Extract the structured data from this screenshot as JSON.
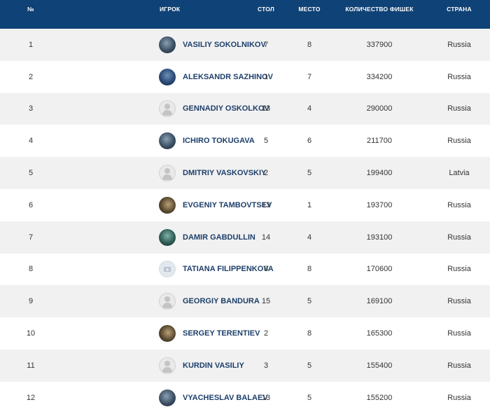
{
  "columns": {
    "num": "№",
    "player": "ИГРОК",
    "table": "СТОЛ",
    "seat": "МЕСТО",
    "chips": "КОЛИЧЕСТВО ФИШЕК",
    "country": "СТРАНА"
  },
  "colors": {
    "header_bg": "#0f4276",
    "name_text": "#1d3f6b",
    "row_alt": "#f1f1f1"
  },
  "rows": [
    {
      "num": "1",
      "name": "VASILIY SOKOLNIKOV",
      "avatar": "photo-avatar-icon",
      "table": "7",
      "seat": "8",
      "chips": "337900",
      "country": "Russia"
    },
    {
      "num": "2",
      "name": "ALEKSANDR SAZHINOV",
      "avatar": "photo-avatar-icon",
      "table": "1",
      "seat": "7",
      "chips": "334200",
      "country": "Russia"
    },
    {
      "num": "3",
      "name": "GENNADIY OSKOLKOV",
      "avatar": "default-avatar-icon",
      "table": "13",
      "seat": "4",
      "chips": "290000",
      "country": "Russia"
    },
    {
      "num": "4",
      "name": "ICHIRO TOKUGAVA",
      "avatar": "photo-avatar-icon",
      "table": "5",
      "seat": "6",
      "chips": "211700",
      "country": "Russia"
    },
    {
      "num": "5",
      "name": "DMITRIY VASKOVSKIY",
      "avatar": "default-avatar-icon",
      "table": "2",
      "seat": "5",
      "chips": "199400",
      "country": "Latvia"
    },
    {
      "num": "6",
      "name": "EVGENIY TAMBOVTSEV",
      "avatar": "photo-avatar-icon",
      "table": "13",
      "seat": "1",
      "chips": "193700",
      "country": "Russia"
    },
    {
      "num": "7",
      "name": "DAMIR GABDULLIN",
      "avatar": "photo-avatar-icon",
      "table": "14",
      "seat": "4",
      "chips": "193100",
      "country": "Russia"
    },
    {
      "num": "8",
      "name": "TATIANA FILIPPENKOVA",
      "avatar": "camera-avatar-icon",
      "table": "8",
      "seat": "8",
      "chips": "170600",
      "country": "Russia"
    },
    {
      "num": "9",
      "name": "GEORGIY BANDURA",
      "avatar": "default-avatar-icon",
      "table": "15",
      "seat": "5",
      "chips": "169100",
      "country": "Russia"
    },
    {
      "num": "10",
      "name": "SERGEY TERENTIEV",
      "avatar": "photo-avatar-icon",
      "table": "2",
      "seat": "8",
      "chips": "165300",
      "country": "Russia"
    },
    {
      "num": "11",
      "name": "KURDIN VASILIY",
      "avatar": "default-avatar-icon",
      "table": "3",
      "seat": "5",
      "chips": "155400",
      "country": "Russia"
    },
    {
      "num": "12",
      "name": "VYACHESLAV BALAEV",
      "avatar": "photo-avatar-icon",
      "table": "13",
      "seat": "5",
      "chips": "155200",
      "country": "Russia"
    }
  ]
}
